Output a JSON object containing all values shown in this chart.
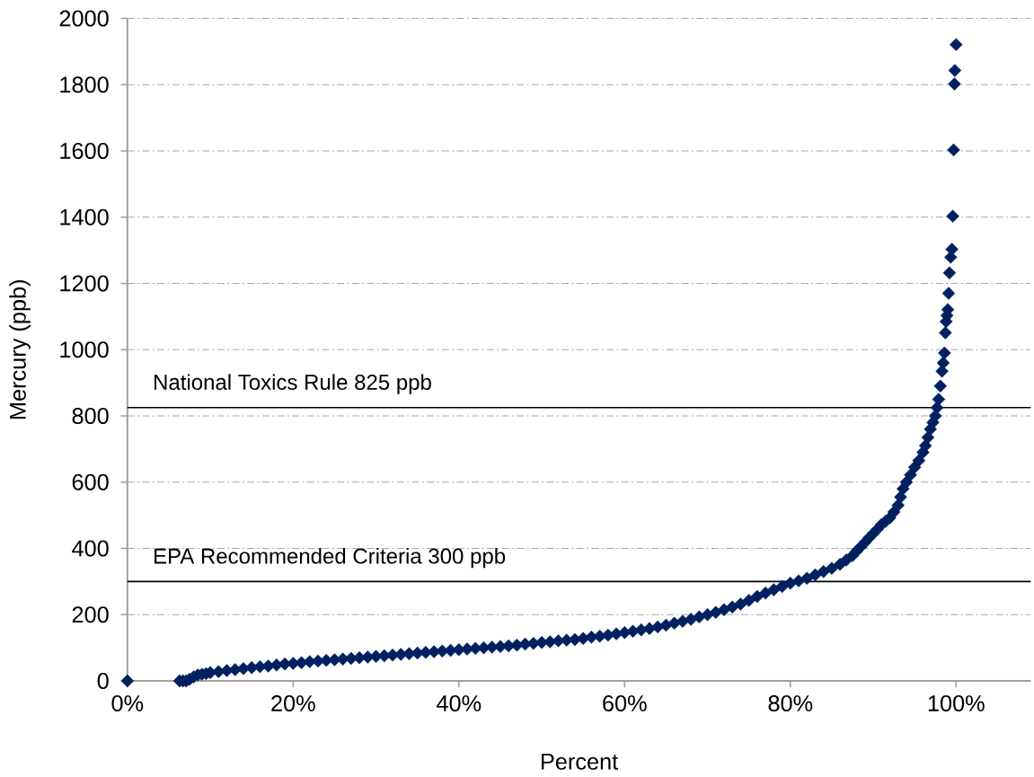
{
  "chart_data": {
    "type": "scatter",
    "xlabel": "Percent",
    "ylabel": "Mercury (ppb)",
    "x": [
      0,
      6.3,
      6.7,
      7.1,
      7.5,
      8,
      8.5,
      9,
      9.5,
      10,
      11,
      12,
      13,
      14,
      15,
      16,
      17,
      18,
      19,
      20,
      21,
      22,
      23,
      24,
      25,
      26,
      27,
      28,
      29,
      30,
      31,
      32,
      33,
      34,
      35,
      36,
      37,
      38,
      39,
      40,
      41,
      42,
      43,
      44,
      45,
      46,
      47,
      48,
      49,
      50,
      51,
      52,
      53,
      54,
      55,
      56,
      57,
      58,
      59,
      60,
      61,
      62,
      63,
      64,
      65,
      66,
      67,
      68,
      69,
      70,
      71,
      72,
      73,
      74,
      75,
      76,
      77,
      78,
      79,
      80,
      81,
      82,
      83,
      84,
      85,
      86,
      86.75,
      87.5,
      88,
      88.5,
      89,
      89.5,
      90,
      90.5,
      91,
      91.5,
      92,
      92.5,
      93,
      93.3,
      93.6,
      94,
      94.5,
      95,
      95.5,
      96,
      96.3,
      96.6,
      96.9,
      97.2,
      97.5,
      97.7,
      97.9,
      98.1,
      98.3,
      98.45,
      98.6,
      98.7,
      98.8,
      98.9,
      99.0,
      99.1,
      99.2,
      99.35,
      99.5,
      99.6,
      99.7,
      99.8,
      99.85,
      100
    ],
    "values": [
      0,
      0,
      0,
      0,
      5,
      12,
      18,
      20,
      22,
      25,
      28,
      31,
      34,
      37,
      40,
      43,
      45,
      48,
      51,
      53,
      55,
      58,
      60,
      62,
      64,
      66,
      68,
      70,
      72,
      74,
      76,
      78,
      80,
      82,
      84,
      86,
      88,
      90,
      92,
      94,
      96,
      98,
      100,
      102,
      104,
      106,
      108,
      111,
      113,
      116,
      118,
      121,
      123,
      125,
      128,
      132,
      135,
      138,
      142,
      146,
      150,
      154,
      158,
      163,
      168,
      174,
      180,
      186,
      193,
      200,
      207,
      215,
      223,
      232,
      243,
      255,
      265,
      275,
      285,
      295,
      302,
      310,
      320,
      330,
      340,
      352,
      365,
      378,
      392,
      405,
      418,
      432,
      445,
      458,
      472,
      482,
      492,
      510,
      530,
      555,
      580,
      600,
      622,
      645,
      665,
      690,
      710,
      735,
      760,
      780,
      800,
      825,
      850,
      890,
      935,
      960,
      990,
      1051,
      1085,
      1103,
      1121,
      1170,
      1232,
      1279,
      1303,
      1403,
      1603,
      1802,
      1843,
      1921
    ],
    "color": "#002060",
    "marker": "diamond",
    "xlim": [
      0,
      109
    ],
    "xticks": [
      {
        "value": 0,
        "label": "0%"
      },
      {
        "value": 20,
        "label": "20%"
      },
      {
        "value": 40,
        "label": "40%"
      },
      {
        "value": 60,
        "label": "60%"
      },
      {
        "value": 80,
        "label": "80%"
      },
      {
        "value": 100,
        "label": "100%"
      }
    ],
    "ylim": [
      0,
      2000
    ],
    "yticks": [
      0,
      200,
      400,
      600,
      800,
      1000,
      1200,
      1400,
      1600,
      1800,
      2000
    ],
    "grid": "y",
    "ref_lines": [
      {
        "axis": "y",
        "value": 825,
        "label": "National Toxics Rule 825 ppb"
      },
      {
        "axis": "y",
        "value": 300,
        "label": "EPA Recommended Criteria 300 ppb"
      }
    ]
  }
}
